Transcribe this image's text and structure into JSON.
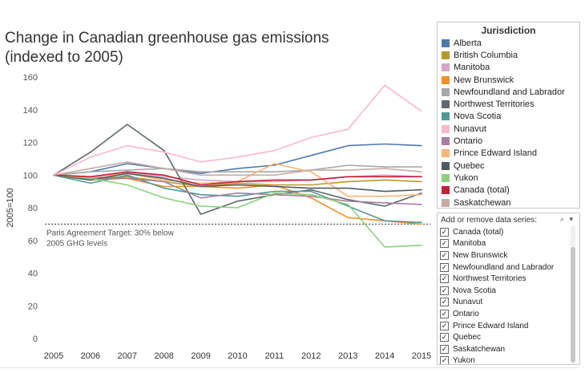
{
  "page": {
    "title_line1": "Change in Canadian greenhouse gas emissions",
    "title_line2": "(indexed to 2005)"
  },
  "chart_data": {
    "type": "line",
    "title": "Change in Canadian greenhouse gas emissions (indexed to 2005)",
    "xlabel": "",
    "ylabel": "2005=100",
    "ylim": [
      0,
      160
    ],
    "yticks": [
      0,
      20,
      40,
      60,
      80,
      100,
      120,
      140,
      160
    ],
    "x": [
      2005,
      2006,
      2007,
      2008,
      2009,
      2010,
      2011,
      2012,
      2013,
      2014,
      2015
    ],
    "grid": false,
    "target": {
      "value": 70,
      "label_line1": "Paris Agreement Target: 30% below",
      "label_line2": "2005 GHG levels"
    },
    "series": [
      {
        "name": "Alberta",
        "color": "#4e79a7",
        "values": [
          100,
          102,
          107,
          104,
          101,
          104,
          106,
          112,
          118,
          119,
          118
        ]
      },
      {
        "name": "British Columbia",
        "color": "#b5992f",
        "values": [
          100,
          98,
          99,
          96,
          93,
          95,
          94,
          94,
          96,
          97,
          96
        ]
      },
      {
        "name": "Manitoba",
        "color": "#d4a6c8",
        "values": [
          100,
          98,
          102,
          99,
          97,
          96,
          96,
          97,
          99,
          100,
          99
        ]
      },
      {
        "name": "New Brunswick",
        "color": "#f28e2b",
        "values": [
          100,
          97,
          98,
          93,
          93,
          92,
          94,
          86,
          74,
          72,
          70
        ]
      },
      {
        "name": "Newfoundland and Labrador",
        "color": "#a8a8a8",
        "values": [
          100,
          102,
          103,
          104,
          102,
          102,
          102,
          103,
          106,
          105,
          105
        ]
      },
      {
        "name": "Northwest Territories",
        "color": "#60696e",
        "values": [
          100,
          114,
          131,
          115,
          76,
          84,
          88,
          91,
          85,
          81,
          89
        ]
      },
      {
        "name": "Nova Scotia",
        "color": "#4f9a94",
        "values": [
          100,
          95,
          100,
          92,
          88,
          87,
          90,
          90,
          81,
          72,
          71
        ]
      },
      {
        "name": "Nunavut",
        "color": "#f9b8cb",
        "values": [
          100,
          111,
          118,
          114,
          108,
          111,
          115,
          123,
          128,
          155,
          139
        ]
      },
      {
        "name": "Ontario",
        "color": "#a67f9e",
        "values": [
          100,
          98,
          98,
          96,
          86,
          89,
          88,
          87,
          84,
          83,
          82
        ]
      },
      {
        "name": "Prince Edward Island",
        "color": "#f9b675",
        "values": [
          100,
          99,
          101,
          97,
          95,
          96,
          107,
          102,
          87,
          87,
          88
        ]
      },
      {
        "name": "Quebec",
        "color": "#4f5a63",
        "values": [
          100,
          97,
          101,
          98,
          93,
          94,
          93,
          92,
          92,
          90,
          91
        ]
      },
      {
        "name": "Yukon",
        "color": "#8cd17d",
        "values": [
          100,
          98,
          94,
          86,
          81,
          80,
          89,
          88,
          82,
          56,
          57
        ]
      },
      {
        "name": "Canada (total)",
        "color": "#c41e3a",
        "values": [
          100,
          99,
          102,
          100,
          94,
          96,
          97,
          97,
          99,
          99,
          99
        ]
      },
      {
        "name": "Saskatchewan",
        "color": "#c7aba6",
        "values": [
          100,
          104,
          108,
          104,
          100,
          100,
          100,
          103,
          103,
          104,
          102
        ]
      }
    ]
  },
  "legend": {
    "title": "Jurisdiction",
    "items": [
      {
        "label": "Alberta",
        "color": "#4e79a7"
      },
      {
        "label": "British Columbia",
        "color": "#b5992f"
      },
      {
        "label": "Manitoba",
        "color": "#d4a6c8"
      },
      {
        "label": "New Brunswick",
        "color": "#f28e2b"
      },
      {
        "label": "Newfoundland and Labrador",
        "color": "#a8a8a8"
      },
      {
        "label": "Northwest Territories",
        "color": "#60696e"
      },
      {
        "label": "Nova Scotia",
        "color": "#4f9a94"
      },
      {
        "label": "Nunavut",
        "color": "#f9b8cb"
      },
      {
        "label": "Ontario",
        "color": "#a67f9e"
      },
      {
        "label": "Prince Edward Island",
        "color": "#f9b675"
      },
      {
        "label": "Quebec",
        "color": "#4f5a63"
      },
      {
        "label": "Yukon",
        "color": "#8cd17d"
      },
      {
        "label": "Canada (total)",
        "color": "#c41e3a"
      },
      {
        "label": "Saskatchewan",
        "color": "#c7aba6"
      }
    ]
  },
  "filter": {
    "title": "Add or remove data series:",
    "search_icon": "search-icon",
    "dropdown_icon": "chevron-down-icon",
    "check_mark": "✓",
    "items": [
      {
        "label": "Canada (total)",
        "checked": true
      },
      {
        "label": "Manitoba",
        "checked": true
      },
      {
        "label": "New Brunswick",
        "checked": true
      },
      {
        "label": "Newfoundland and Labrador",
        "checked": true
      },
      {
        "label": "Northwest Territories",
        "checked": true
      },
      {
        "label": "Nova Scotia",
        "checked": true
      },
      {
        "label": "Nunavut",
        "checked": true
      },
      {
        "label": "Ontario",
        "checked": true
      },
      {
        "label": "Prince Edward Island",
        "checked": true
      },
      {
        "label": "Quebec",
        "checked": true
      },
      {
        "label": "Saskatchewan",
        "checked": true
      },
      {
        "label": "Yukon",
        "checked": true
      }
    ]
  }
}
